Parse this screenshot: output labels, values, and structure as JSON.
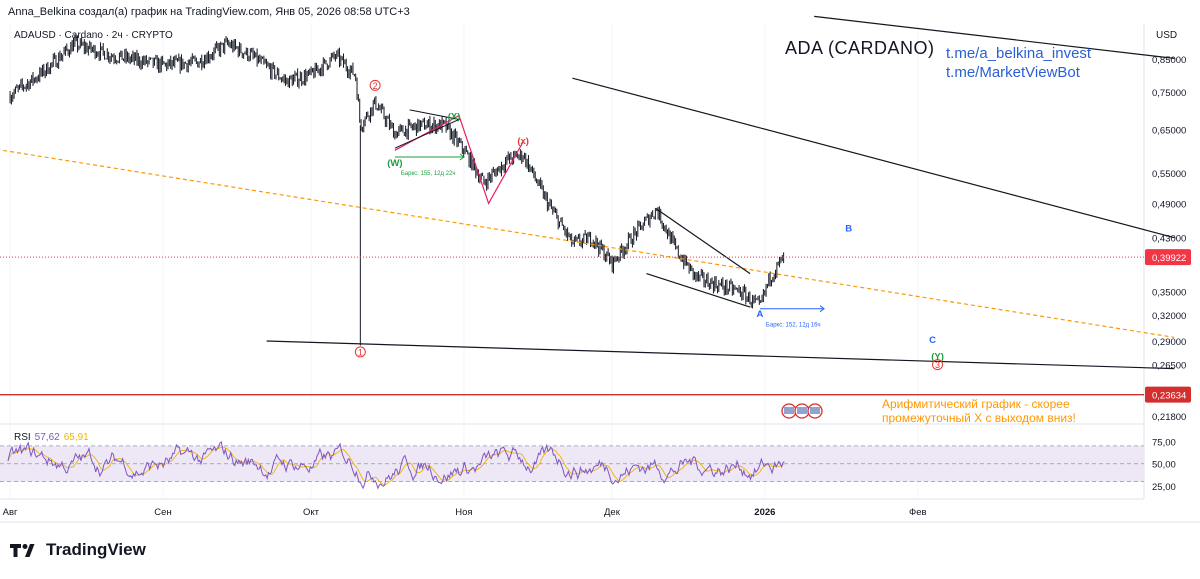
{
  "header": {
    "author_line": "Anna_Belkina создал(а) график на TradingView.com, Янв 05, 2026 08:58 UTC+3",
    "symbol_line": "ADAUSD · Cardano · 2ч · CRYPTO",
    "currency": "USD"
  },
  "title": "ADA (CARDANO)",
  "links": [
    "t.me/a_belkina_invest",
    "t.me/MarketViewBot"
  ],
  "note": [
    "Арифмитический график - скорее",
    "промежуточный X с выходом вниз!"
  ],
  "brand": "TradingView",
  "colors": {
    "candle": "#131722",
    "rsi_line": "#7e57c2",
    "rsi_ma": "#f0b400",
    "rsi_band": "#ede7f6",
    "current_price": "#f23645",
    "support_price": "#d32f2f",
    "projection": "#ff9800",
    "wave_green": "#1e9e3e",
    "wave_red": "#e53935",
    "wave_blue": "#2962ff",
    "pink": "#e91e63"
  },
  "chart_data": {
    "type": "candlestick",
    "symbol": "ADAUSD",
    "interval": "2h",
    "y_axis": {
      "ticks": [
        "0,85000",
        "0,75000",
        "0,65000",
        "0,55000",
        "0,49000",
        "0,43000",
        "0,35000",
        "0,32000",
        "0,29000",
        "0,26500",
        "0,21800"
      ],
      "current_price": 0.39922,
      "current_price_label": "0,39922",
      "support_level": 0.23634,
      "support_label": "0,23634"
    },
    "x_axis": {
      "ticks": [
        "Авг",
        "Сен",
        "Окт",
        "Ноя",
        "Дек",
        "2026",
        "Фев"
      ]
    },
    "close_path": [
      {
        "date": "2025-08-01",
        "price": 0.74
      },
      {
        "date": "2025-08-07",
        "price": 0.8
      },
      {
        "date": "2025-08-14",
        "price": 0.9
      },
      {
        "date": "2025-08-22",
        "price": 0.86
      },
      {
        "date": "2025-09-01",
        "price": 0.83
      },
      {
        "date": "2025-09-08",
        "price": 0.84
      },
      {
        "date": "2025-09-14",
        "price": 0.9
      },
      {
        "date": "2025-09-19",
        "price": 0.86
      },
      {
        "date": "2025-09-26",
        "price": 0.78
      },
      {
        "date": "2025-10-01",
        "price": 0.8
      },
      {
        "date": "2025-10-06",
        "price": 0.86
      },
      {
        "date": "2025-10-10",
        "price": 0.8
      },
      {
        "date": "2025-10-11",
        "price": 0.66
      },
      {
        "date": "2025-10-14",
        "price": 0.72
      },
      {
        "date": "2025-10-18",
        "price": 0.64
      },
      {
        "date": "2025-10-23",
        "price": 0.66
      },
      {
        "date": "2025-10-28",
        "price": 0.66
      },
      {
        "date": "2025-11-01",
        "price": 0.6
      },
      {
        "date": "2025-11-05",
        "price": 0.53
      },
      {
        "date": "2025-11-10",
        "price": 0.58
      },
      {
        "date": "2025-11-13",
        "price": 0.59
      },
      {
        "date": "2025-11-18",
        "price": 0.49
      },
      {
        "date": "2025-11-23",
        "price": 0.42
      },
      {
        "date": "2025-11-27",
        "price": 0.43
      },
      {
        "date": "2025-12-01",
        "price": 0.39
      },
      {
        "date": "2025-12-05",
        "price": 0.43
      },
      {
        "date": "2025-12-10",
        "price": 0.48
      },
      {
        "date": "2025-12-14",
        "price": 0.41
      },
      {
        "date": "2025-12-18",
        "price": 0.37
      },
      {
        "date": "2025-12-22",
        "price": 0.36
      },
      {
        "date": "2025-12-27",
        "price": 0.35
      },
      {
        "date": "2025-12-31",
        "price": 0.33
      },
      {
        "date": "2026-01-02",
        "price": 0.37
      },
      {
        "date": "2026-01-05",
        "price": 0.4
      }
    ],
    "rsi": {
      "label": "RSI",
      "value": 57.62,
      "value_label": "57,62",
      "ma_label": "65,91",
      "ticks": [
        "75,00",
        "50,00",
        "25,00"
      ],
      "upper": 70,
      "lower": 30
    },
    "wave_labels": [
      {
        "text": "2",
        "date": "2025-10-14",
        "price": 0.76,
        "color": "#e53935",
        "circled": true
      },
      {
        "text": "1",
        "date": "2025-10-11",
        "price": 0.275,
        "color": "#e53935",
        "circled": true
      },
      {
        "text": "(X)",
        "date": "2025-10-30",
        "price": 0.675,
        "color": "#1e9e3e"
      },
      {
        "text": "(W)",
        "date": "2025-10-18",
        "price": 0.565,
        "color": "#1e9e3e"
      },
      {
        "text": "(x)",
        "date": "2025-11-13",
        "price": 0.615,
        "color": "#e53935"
      },
      {
        "text": "A",
        "date": "2025-12-31",
        "price": 0.318,
        "color": "#2962ff"
      },
      {
        "text": "B",
        "date": "2026-01-18",
        "price": 0.44,
        "color": "#2962ff"
      },
      {
        "text": "C",
        "date": "2026-02-04",
        "price": 0.288,
        "color": "#2962ff"
      },
      {
        "text": "(Y)",
        "date": "2026-02-05",
        "price": 0.27,
        "color": "#1e9e3e"
      },
      {
        "text": "3",
        "date": "2026-02-05",
        "price": 0.262,
        "color": "#e53935",
        "circled": true
      }
    ],
    "annotations": [
      {
        "text": "Баркс: 155, 12д 22ч",
        "color": "#1e9e3e"
      },
      {
        "text": "Баркс: 152, 12д 16ч",
        "color": "#2962ff"
      }
    ],
    "trendlines": [
      {
        "from": {
          "date": "2026-01-11",
          "price": 1.0
        },
        "to": {
          "date": "2026-03-25",
          "price": 0.852
        },
        "color": "#131722"
      },
      {
        "from": {
          "date": "2025-11-23",
          "price": 0.79
        },
        "to": {
          "date": "2026-03-25",
          "price": 0.43
        },
        "color": "#131722"
      },
      {
        "from": {
          "date": "2025-09-22",
          "price": 0.29
        },
        "to": {
          "date": "2026-03-25",
          "price": 0.261
        },
        "color": "#131722"
      },
      {
        "from": {
          "date": "2025-07-25",
          "price": 0.61
        },
        "to": {
          "date": "2026-03-25",
          "price": 0.294
        },
        "color": "#ff9800",
        "dashed": true
      },
      {
        "from": {
          "date": "2025-12-08",
          "price": 0.375
        },
        "to": {
          "date": "2025-12-29",
          "price": 0.33
        },
        "color": "#131722"
      },
      {
        "from": {
          "date": "2025-12-10",
          "price": 0.48
        },
        "to": {
          "date": "2025-12-29",
          "price": 0.375
        },
        "color": "#131722"
      }
    ]
  }
}
